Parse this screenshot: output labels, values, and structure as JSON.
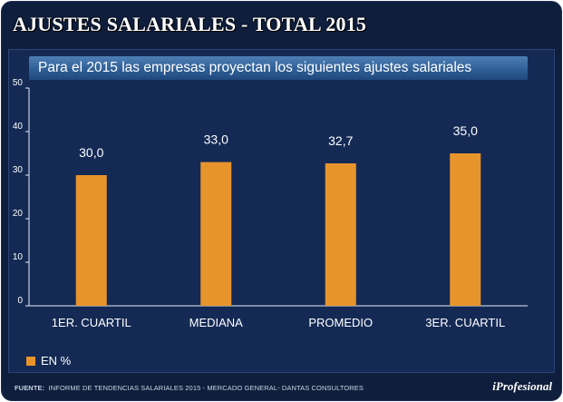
{
  "header": {
    "title": "AJUSTES SALARIALES - TOTAL 2015"
  },
  "subtitle": "Para el 2015 las empresas proyectan los siguientes ajustes salariales",
  "legend": {
    "label": "EN %"
  },
  "footer": {
    "source_label": "FUENTE:",
    "source_text": "INFORME DE TENDENCIAS SALARIALES 2015 - MERCADO GENERAL- DANTAS CONSULTORES"
  },
  "logo": {
    "text": "iProfesional"
  },
  "colors": {
    "bar": "#e8942d",
    "background": "#0f1e3c"
  },
  "chart_data": {
    "type": "bar",
    "title": "AJUSTES SALARIALES - TOTAL 2015",
    "subtitle": "Para el 2015 las empresas proyectan los siguientes ajustes salariales",
    "categories": [
      "1ER. CUARTIL",
      "MEDIANA",
      "PROMEDIO",
      "3ER. CUARTIL"
    ],
    "values": [
      30.0,
      33.0,
      32.7,
      35.0
    ],
    "value_labels": [
      "30,0",
      "33,0",
      "32,7",
      "35,0"
    ],
    "series": [
      {
        "name": "EN %",
        "values": [
          30.0,
          33.0,
          32.7,
          35.0
        ]
      }
    ],
    "ylim": [
      0,
      50
    ],
    "yticks": [
      0,
      10,
      20,
      30,
      40,
      50
    ],
    "xlabel": "",
    "ylabel": "",
    "grid": false,
    "legend_position": "bottom-left"
  }
}
